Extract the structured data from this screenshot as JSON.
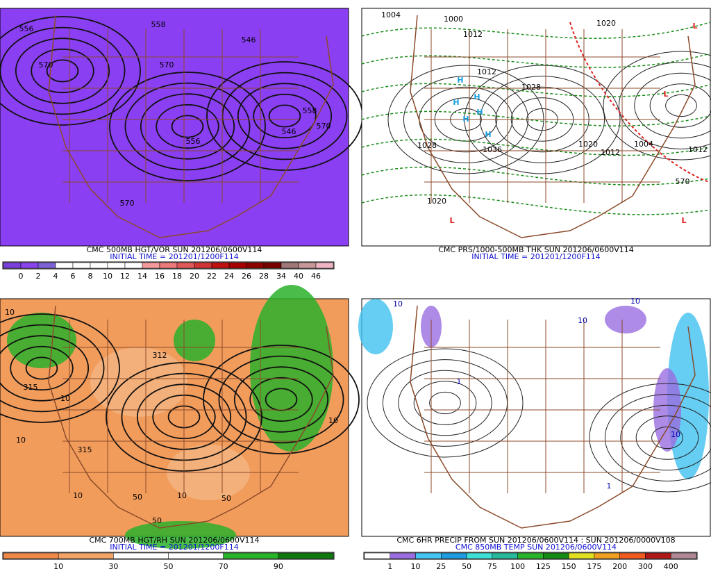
{
  "panels": [
    {
      "caption": "CMC 500MB HGT/VOR SUN 201206/0600V114",
      "initial_time": "INITIAL TIME = 201201/1200F114",
      "colorbar": {
        "ticks": [
          0,
          2,
          4,
          6,
          8,
          10,
          12,
          14,
          16,
          18,
          20,
          22,
          24,
          26,
          28,
          34,
          40,
          46
        ],
        "colors": [
          "#7a3fdc",
          "#8a44ee",
          "#7c62d6",
          "#ffffff",
          "#ffffff",
          "#ffffff",
          "#ffffff",
          "#ffffff",
          "#f49a9a",
          "#ec7a7a",
          "#e05858",
          "#d03434",
          "#c01010",
          "#a80000",
          "#8c0000",
          "#780000",
          "#a07878",
          "#c89898",
          "#f0b4c4"
        ]
      },
      "contour_labels": [
        "556",
        "558",
        "546",
        "570",
        "570",
        "556",
        "546",
        "558",
        "570",
        "570"
      ]
    },
    {
      "caption": "CMC PRS/1000-500MB THK SUN 201206/0600V114",
      "initial_time": "INITIAL TIME = 201201/1200F114",
      "contour_labels": [
        "1004",
        "1000",
        "1012",
        "1020",
        "1012",
        "1028",
        "1028",
        "1020",
        "1036",
        "1020",
        "1012",
        "1012",
        "570",
        "1004"
      ],
      "markers": [
        "H",
        "H",
        "H",
        "H",
        "H",
        "H",
        "L",
        "L",
        "L",
        "L"
      ]
    },
    {
      "caption": "CMC 700MB HGT/RH SUN 201206/0600V114",
      "initial_time": "INITIAL TIME = 201201/1200F114",
      "colorbar": {
        "ticks": [
          10,
          30,
          50,
          70,
          90
        ],
        "colors": [
          "#f08848",
          "#f4a466",
          "#ffffff",
          "#ffffff",
          "#28b428",
          "#0e7a0e"
        ]
      },
      "contour_labels": [
        "10",
        "315",
        "10",
        "315",
        "50",
        "10",
        "50",
        "10",
        "10",
        "10",
        "312",
        "50"
      ]
    },
    {
      "caption": "CMC 6HR PRECIP FROM SUN 201206/0600V114 : SUN 201206/0000V108",
      "initial_time": "CMC 850MB TEMP SUN 201206/0600V114",
      "colorbar": {
        "ticks": [
          1,
          10,
          25,
          50,
          75,
          100,
          125,
          150,
          175,
          200,
          300,
          400
        ],
        "colors": [
          "#ffffff",
          "#9a6ee0",
          "#44c4f0",
          "#1e9ce0",
          "#3ce0d4",
          "#28b89c",
          "#28b428",
          "#148c14",
          "#e0e020",
          "#f0a020",
          "#f05a1e",
          "#b01818",
          "#b08894"
        ]
      },
      "contour_labels": [
        "10",
        "10",
        "10",
        "1",
        "10",
        "1"
      ]
    }
  ]
}
